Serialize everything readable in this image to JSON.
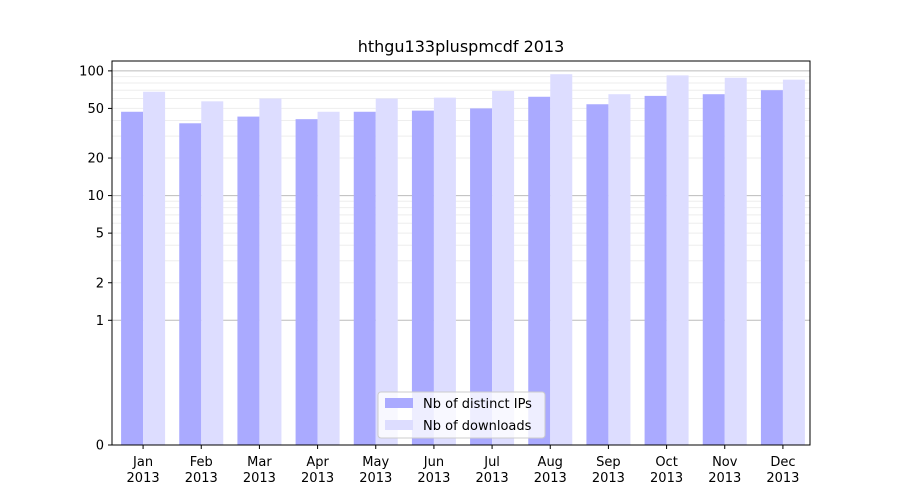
{
  "chart_data": {
    "type": "bar",
    "title": "hthgu133pluspmcdf 2013",
    "xlabel": "",
    "ylabel": "",
    "yscale": "symlog",
    "ylim": [
      0,
      120
    ],
    "yticks": [
      0,
      1,
      2,
      5,
      10,
      20,
      50,
      100
    ],
    "grid": true,
    "legend_position": "bottom-center",
    "categories": [
      [
        "Jan",
        "2013"
      ],
      [
        "Feb",
        "2013"
      ],
      [
        "Mar",
        "2013"
      ],
      [
        "Apr",
        "2013"
      ],
      [
        "May",
        "2013"
      ],
      [
        "Jun",
        "2013"
      ],
      [
        "Jul",
        "2013"
      ],
      [
        "Aug",
        "2013"
      ],
      [
        "Sep",
        "2013"
      ],
      [
        "Oct",
        "2013"
      ],
      [
        "Nov",
        "2013"
      ],
      [
        "Dec",
        "2013"
      ]
    ],
    "series": [
      {
        "name": "Nb of distinct IPs",
        "color": "#aaaaff",
        "values": [
          47,
          38,
          43,
          41,
          47,
          48,
          50,
          62,
          54,
          63,
          65,
          70
        ]
      },
      {
        "name": "Nb of downloads",
        "color": "#ddddff",
        "values": [
          68,
          57,
          60,
          47,
          60,
          61,
          69,
          94,
          65,
          92,
          88,
          85
        ]
      }
    ]
  }
}
